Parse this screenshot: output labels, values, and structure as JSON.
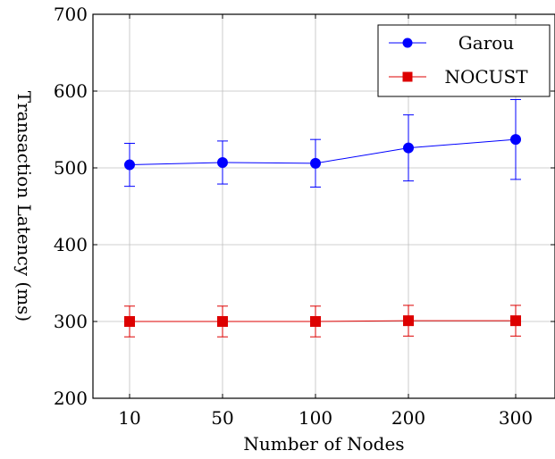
{
  "chart_data": {
    "type": "line",
    "title": "",
    "xlabel": "Number of Nodes",
    "ylabel": "Transaction Latency (ms)",
    "categories": [
      "10",
      "50",
      "100",
      "200",
      "300"
    ],
    "ylim": [
      200,
      700
    ],
    "yticks": [
      200,
      300,
      400,
      500,
      600,
      700
    ],
    "grid": true,
    "legend_position": "top-right",
    "series": [
      {
        "name": "Garou",
        "color": "#0000ff",
        "marker": "circle",
        "values": [
          504,
          507,
          506,
          526,
          537
        ],
        "error_low": [
          476,
          479,
          475,
          483,
          485
        ],
        "error_high": [
          532,
          535,
          537,
          569,
          589
        ]
      },
      {
        "name": "NOCUST",
        "color": "#dd0000",
        "marker": "square",
        "values": [
          300,
          300,
          300,
          301,
          301
        ],
        "error_low": [
          280,
          280,
          280,
          281,
          281
        ],
        "error_high": [
          320,
          320,
          320,
          321,
          321
        ]
      }
    ]
  }
}
